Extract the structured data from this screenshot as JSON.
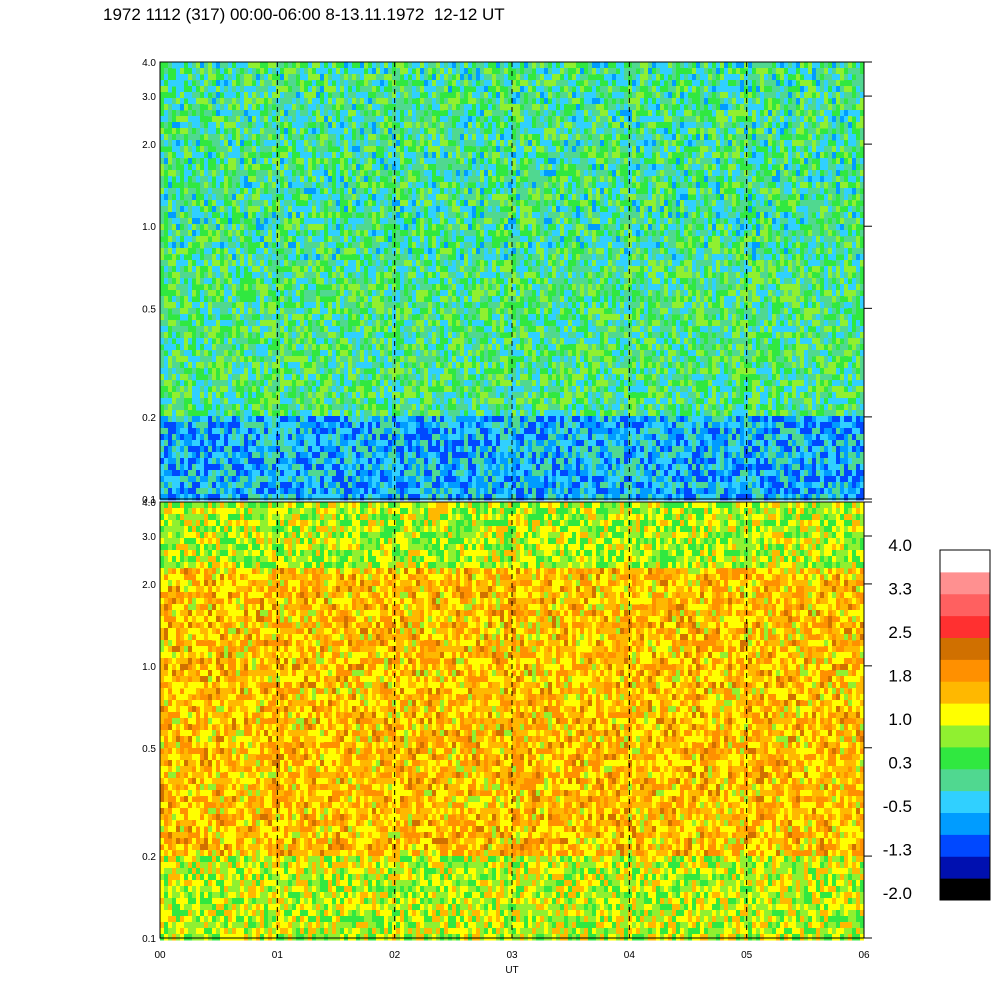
{
  "title": "1972 1112 (317) 00:00-06:00 8-13.11.1972  12-12 UT",
  "chart_data": [
    {
      "type": "heatmap",
      "panel": "top",
      "x_range": [
        0,
        6
      ],
      "x_ticks": [
        "00",
        "01",
        "02",
        "03",
        "04",
        "05",
        "06"
      ],
      "y_scale": "log",
      "y_range": [
        0.1,
        4.0
      ],
      "y_ticks": [
        {
          "value": 0.1,
          "label": "0.1"
        },
        {
          "value": 0.2,
          "label": "0.2"
        },
        {
          "value": 0.5,
          "label": "0.5"
        },
        {
          "value": 1.0,
          "label": "1.0"
        },
        {
          "value": 2.0,
          "label": "2.0"
        },
        {
          "value": 3.0,
          "label": "3.0"
        },
        {
          "value": 4.0,
          "label": "4.0"
        }
      ],
      "hour_dashed_lines": [
        1,
        2,
        3,
        4,
        5
      ],
      "dominant_levels": [
        -0.5,
        0.3,
        1.0
      ]
    },
    {
      "type": "heatmap",
      "panel": "bottom",
      "x_range": [
        0,
        6
      ],
      "x_ticks": [
        "00",
        "01",
        "02",
        "03",
        "04",
        "05",
        "06"
      ],
      "y_scale": "log",
      "y_range": [
        0.1,
        4.0
      ],
      "y_ticks": [
        {
          "value": 0.1,
          "label": "0.1"
        },
        {
          "value": 0.2,
          "label": "0.2"
        },
        {
          "value": 0.5,
          "label": "0.5"
        },
        {
          "value": 1.0,
          "label": "1.0"
        },
        {
          "value": 2.0,
          "label": "2.0"
        },
        {
          "value": 3.0,
          "label": "3.0"
        },
        {
          "value": 4.0,
          "label": "4.0"
        }
      ],
      "xlabel": "UT",
      "hour_dashed_lines": [
        1,
        2,
        3,
        4,
        5
      ],
      "dominant_levels": [
        1.0,
        1.8
      ]
    }
  ],
  "colorbar": {
    "colors": [
      "#000000",
      "#0010b0",
      "#0048ff",
      "#009cff",
      "#30d0ff",
      "#50d890",
      "#30e840",
      "#90f030",
      "#ffff00",
      "#ffb800",
      "#ff9000",
      "#d07000",
      "#ff3030",
      "#ff6060",
      "#ff9090",
      "#ffffff"
    ],
    "labels": [
      "4.0",
      "3.3",
      "2.5",
      "1.8",
      "1.0",
      "0.3",
      "-0.5",
      "-1.3",
      "-2.0"
    ]
  }
}
